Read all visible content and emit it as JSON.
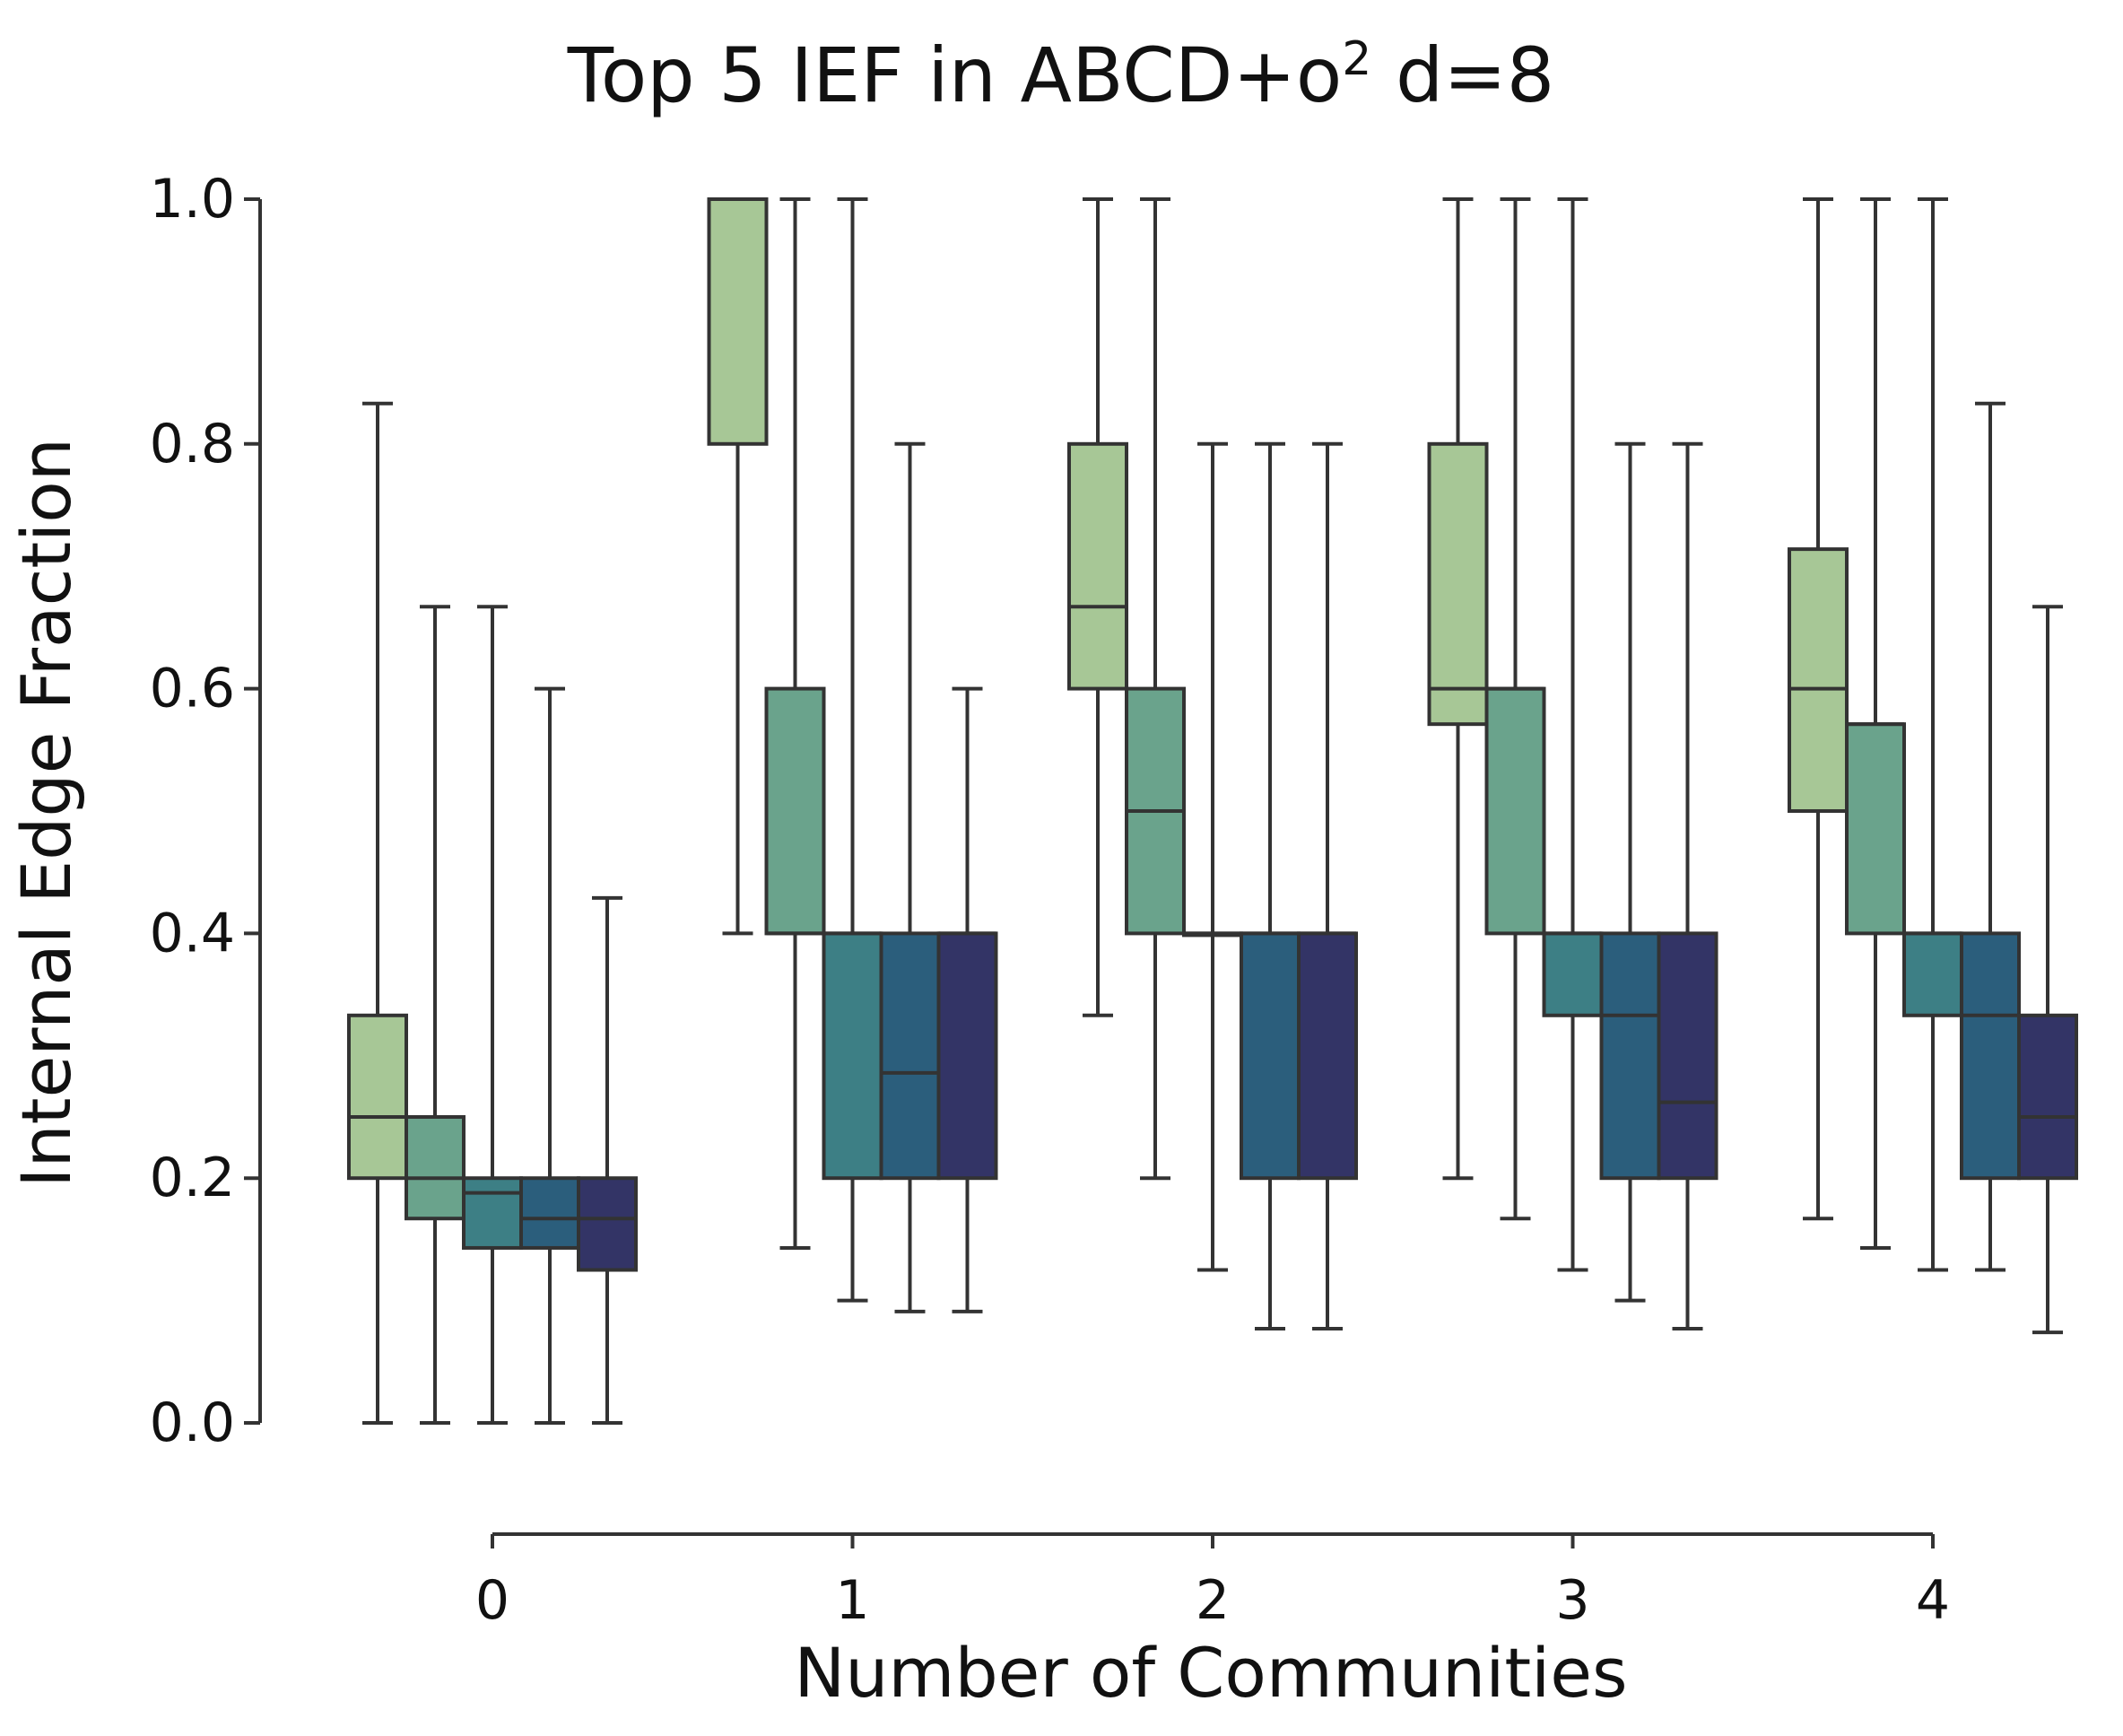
{
  "chart_data": {
    "type": "box",
    "title": "Top 5 IEF in ABCD+o",
    "title_superscript": "2",
    "title_suffix": " d=8",
    "xlabel": "Number of Communities",
    "ylabel": "Internal Edge Fraction",
    "ylim": [
      0.0,
      1.0
    ],
    "yticks": [
      "0.0",
      "0.2",
      "0.4",
      "0.6",
      "0.8",
      "1.0"
    ],
    "xticks": [
      "0",
      "1",
      "2",
      "3",
      "4"
    ],
    "series_colors": [
      "#a7c796",
      "#6aa38c",
      "#3d7f85",
      "#2b5e7c",
      "#333466"
    ],
    "groups": [
      {
        "label": "0",
        "boxes": [
          {
            "min": 0.0,
            "q1": 0.2,
            "median": 0.25,
            "q3": 0.333,
            "max": 0.833
          },
          {
            "min": 0.0,
            "q1": 0.167,
            "median": 0.2,
            "q3": 0.25,
            "max": 0.667
          },
          {
            "min": 0.0,
            "q1": 0.143,
            "median": 0.188,
            "q3": 0.2,
            "max": 0.667
          },
          {
            "min": 0.0,
            "q1": 0.143,
            "median": 0.167,
            "q3": 0.2,
            "max": 0.6
          },
          {
            "min": 0.0,
            "q1": 0.125,
            "median": 0.167,
            "q3": 0.2,
            "max": 0.429
          }
        ]
      },
      {
        "label": "1",
        "boxes": [
          {
            "min": 0.4,
            "q1": 0.8,
            "median": 1.0,
            "q3": 1.0,
            "max": 1.0
          },
          {
            "min": 0.143,
            "q1": 0.4,
            "median": 0.4,
            "q3": 0.6,
            "max": 1.0
          },
          {
            "min": 0.1,
            "q1": 0.2,
            "median": 0.4,
            "q3": 0.4,
            "max": 1.0
          },
          {
            "min": 0.091,
            "q1": 0.2,
            "median": 0.286,
            "q3": 0.4,
            "max": 0.8
          },
          {
            "min": 0.091,
            "q1": 0.2,
            "median": 0.4,
            "q3": 0.4,
            "max": 0.6
          }
        ]
      },
      {
        "label": "2",
        "boxes": [
          {
            "min": 0.333,
            "q1": 0.6,
            "median": 0.667,
            "q3": 0.8,
            "max": 1.0
          },
          {
            "min": 0.2,
            "q1": 0.4,
            "median": 0.5,
            "q3": 0.6,
            "max": 1.0
          },
          {
            "min": 0.125,
            "q1": 0.4,
            "median": 0.4,
            "q3": 0.4,
            "max": 0.8
          },
          {
            "min": 0.077,
            "q1": 0.2,
            "median": 0.4,
            "q3": 0.4,
            "max": 0.8
          },
          {
            "min": 0.077,
            "q1": 0.2,
            "median": 0.4,
            "q3": 0.4,
            "max": 0.8
          }
        ]
      },
      {
        "label": "3",
        "boxes": [
          {
            "min": 0.2,
            "q1": 0.571,
            "median": 0.6,
            "q3": 0.8,
            "max": 1.0
          },
          {
            "min": 0.167,
            "q1": 0.4,
            "median": 0.6,
            "q3": 0.6,
            "max": 1.0
          },
          {
            "min": 0.125,
            "q1": 0.333,
            "median": 0.4,
            "q3": 0.4,
            "max": 1.0
          },
          {
            "min": 0.1,
            "q1": 0.2,
            "median": 0.333,
            "q3": 0.4,
            "max": 0.8
          },
          {
            "min": 0.077,
            "q1": 0.2,
            "median": 0.262,
            "q3": 0.4,
            "max": 0.8
          }
        ]
      },
      {
        "label": "4",
        "boxes": [
          {
            "min": 0.167,
            "q1": 0.5,
            "median": 0.6,
            "q3": 0.714,
            "max": 1.0
          },
          {
            "min": 0.143,
            "q1": 0.4,
            "median": 0.571,
            "q3": 0.571,
            "max": 1.0
          },
          {
            "min": 0.125,
            "q1": 0.333,
            "median": 0.4,
            "q3": 0.4,
            "max": 1.0
          },
          {
            "min": 0.125,
            "q1": 0.2,
            "median": 0.333,
            "q3": 0.4,
            "max": 0.833
          },
          {
            "min": 0.074,
            "q1": 0.2,
            "median": 0.25,
            "q3": 0.333,
            "max": 0.667
          }
        ]
      }
    ]
  }
}
